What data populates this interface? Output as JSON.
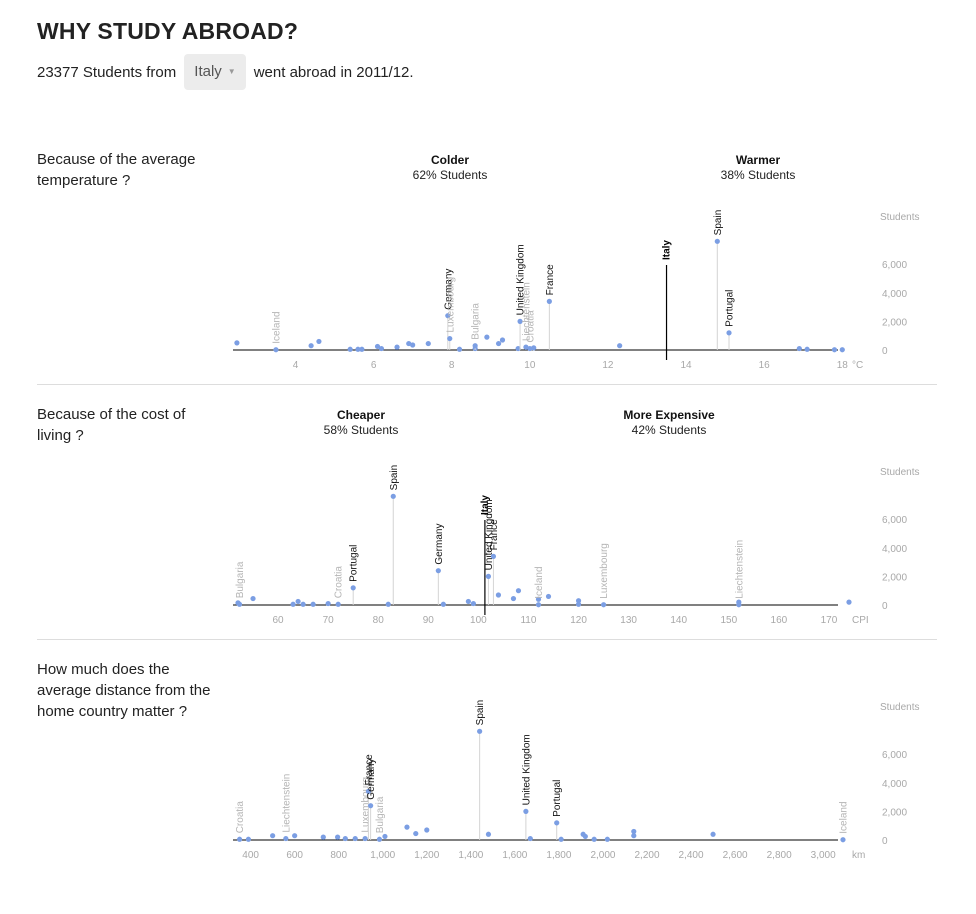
{
  "page": {
    "title": "WHY STUDY ABROAD?"
  },
  "intro": {
    "count": "23377",
    "before": "Students from",
    "country": "Italy",
    "after": "went abroad in 2011/12."
  },
  "colors": {
    "point": "#7b9ee3",
    "stem": "#d4d4d4",
    "axis": "#000000",
    "muted_label": "#b5b5b5",
    "tick": "#a8a8a8",
    "home": "#000000"
  },
  "chart_data": [
    {
      "type": "scatter",
      "question": "Because of the average temperature ?",
      "unit": "°C",
      "y_title": "Students",
      "xlim": [
        2.4,
        18.3
      ],
      "ylim": [
        0,
        6500
      ],
      "x_ticks": [
        4,
        6,
        8,
        10,
        12,
        14,
        16,
        18
      ],
      "x_tick_labels": [
        "4",
        "6",
        "8",
        "10",
        "12",
        "14",
        "16",
        "18"
      ],
      "y_ticks": [
        0,
        2000,
        4000,
        6000
      ],
      "y_tick_labels": [
        "0",
        "2,000",
        "4,000",
        "6,000"
      ],
      "groups": [
        {
          "title": "Colder",
          "subtitle": "62% Students"
        },
        {
          "title": "Warmer",
          "subtitle": "38% Students"
        }
      ],
      "home": {
        "label": "Italy",
        "x": 13.5
      },
      "labeled_points": [
        {
          "label": "Iceland",
          "x": 3.5,
          "y": 20,
          "muted": true
        },
        {
          "label": "Germany",
          "x": 7.9,
          "y": 2400,
          "muted": false
        },
        {
          "label": "Luxembourg",
          "x": 7.95,
          "y": 800,
          "muted": true
        },
        {
          "label": "Bulgaria",
          "x": 8.6,
          "y": 300,
          "muted": true
        },
        {
          "label": "United Kingdom",
          "x": 9.75,
          "y": 2000,
          "muted": false
        },
        {
          "label": "Liechtenstein",
          "x": 9.9,
          "y": 200,
          "muted": true
        },
        {
          "label": "Croatia",
          "x": 10.0,
          "y": 100,
          "muted": true
        },
        {
          "label": "France",
          "x": 10.5,
          "y": 3400,
          "muted": false
        },
        {
          "label": "Spain",
          "x": 14.8,
          "y": 7600,
          "muted": false
        },
        {
          "label": "Portugal",
          "x": 15.1,
          "y": 1200,
          "muted": false
        }
      ],
      "points": [
        {
          "x": 2.5,
          "y": 500
        },
        {
          "x": 4.4,
          "y": 300
        },
        {
          "x": 4.6,
          "y": 600
        },
        {
          "x": 5.4,
          "y": 50
        },
        {
          "x": 5.6,
          "y": 50
        },
        {
          "x": 5.7,
          "y": 50
        },
        {
          "x": 6.1,
          "y": 250
        },
        {
          "x": 6.2,
          "y": 100
        },
        {
          "x": 6.6,
          "y": 200
        },
        {
          "x": 6.9,
          "y": 450
        },
        {
          "x": 7.0,
          "y": 350
        },
        {
          "x": 7.4,
          "y": 450
        },
        {
          "x": 8.2,
          "y": 50
        },
        {
          "x": 8.6,
          "y": 100
        },
        {
          "x": 8.9,
          "y": 900
        },
        {
          "x": 9.2,
          "y": 450
        },
        {
          "x": 9.3,
          "y": 700
        },
        {
          "x": 9.7,
          "y": 100
        },
        {
          "x": 10.1,
          "y": 150
        },
        {
          "x": 12.3,
          "y": 300
        },
        {
          "x": 16.9,
          "y": 100
        },
        {
          "x": 17.1,
          "y": 50
        },
        {
          "x": 17.8,
          "y": 20
        },
        {
          "x": 18.0,
          "y": 20
        }
      ]
    },
    {
      "type": "scatter",
      "question": "Because of the cost of living ?",
      "unit": "CPI",
      "y_title": "Students",
      "xlim": [
        51,
        175
      ],
      "ylim": [
        0,
        6500
      ],
      "x_ticks": [
        60,
        70,
        80,
        90,
        100,
        110,
        120,
        130,
        140,
        150,
        160,
        170
      ],
      "x_tick_labels": [
        "60",
        "70",
        "80",
        "90",
        "100",
        "110",
        "120",
        "130",
        "140",
        "150",
        "160",
        "170"
      ],
      "y_ticks": [
        0,
        2000,
        4000,
        6000
      ],
      "y_tick_labels": [
        "0",
        "2,000",
        "4,000",
        "6,000"
      ],
      "groups": [
        {
          "title": "Cheaper",
          "subtitle": "58% Students"
        },
        {
          "title": "More Expensive",
          "subtitle": "42% Students"
        }
      ],
      "home": {
        "label": "Italy",
        "x": 101.3
      },
      "labeled_points": [
        {
          "label": "Bulgaria",
          "x": 52.3,
          "y": 50,
          "muted": true
        },
        {
          "label": "Croatia",
          "x": 72,
          "y": 50,
          "muted": true
        },
        {
          "label": "Portugal",
          "x": 75,
          "y": 1200,
          "muted": false
        },
        {
          "label": "Spain",
          "x": 83,
          "y": 7600,
          "muted": false
        },
        {
          "label": "Germany",
          "x": 92,
          "y": 2400,
          "muted": false
        },
        {
          "label": "United Kingdom",
          "x": 102,
          "y": 2000,
          "muted": false
        },
        {
          "label": "France",
          "x": 103,
          "y": 3400,
          "muted": false
        },
        {
          "label": "Iceland",
          "x": 112,
          "y": 20,
          "muted": true
        },
        {
          "label": "Luxembourg",
          "x": 125,
          "y": 20,
          "muted": true
        },
        {
          "label": "Liechtenstein",
          "x": 152,
          "y": 20,
          "muted": true
        }
      ],
      "points": [
        {
          "x": 52,
          "y": 150
        },
        {
          "x": 55,
          "y": 450
        },
        {
          "x": 63,
          "y": 50
        },
        {
          "x": 64,
          "y": 250
        },
        {
          "x": 65,
          "y": 50
        },
        {
          "x": 67,
          "y": 50
        },
        {
          "x": 70,
          "y": 100
        },
        {
          "x": 82,
          "y": 50
        },
        {
          "x": 93,
          "y": 50
        },
        {
          "x": 98,
          "y": 250
        },
        {
          "x": 99,
          "y": 100
        },
        {
          "x": 104,
          "y": 700
        },
        {
          "x": 107,
          "y": 450
        },
        {
          "x": 108,
          "y": 1000
        },
        {
          "x": 112,
          "y": 400
        },
        {
          "x": 114,
          "y": 600
        },
        {
          "x": 120,
          "y": 300
        },
        {
          "x": 120,
          "y": 50
        },
        {
          "x": 152,
          "y": 200
        },
        {
          "x": 174,
          "y": 200
        }
      ]
    },
    {
      "type": "scatter",
      "question": "How much does the average distance from the home country matter ?",
      "unit": "km",
      "y_title": "Students",
      "xlim": [
        320,
        3140
      ],
      "ylim": [
        0,
        6500
      ],
      "x_ticks": [
        400,
        600,
        800,
        1000,
        1200,
        1400,
        1600,
        1800,
        2000,
        2200,
        2400,
        2600,
        2800,
        3000
      ],
      "x_tick_labels": [
        "400",
        "600",
        "800",
        "1,000",
        "1,200",
        "1,400",
        "1,600",
        "1,800",
        "2,000",
        "2,200",
        "2,400",
        "2,600",
        "2,800",
        "3,000"
      ],
      "y_ticks": [
        0,
        2000,
        4000,
        6000
      ],
      "y_tick_labels": [
        "0",
        "2,000",
        "4,000",
        "6,000"
      ],
      "groups": [],
      "home": null,
      "labeled_points": [
        {
          "label": "Croatia",
          "x": 350,
          "y": 50,
          "muted": true
        },
        {
          "label": "Liechtenstein",
          "x": 560,
          "y": 100,
          "muted": true
        },
        {
          "label": "Luxembourg",
          "x": 920,
          "y": 100,
          "muted": true
        },
        {
          "label": "France",
          "x": 935,
          "y": 3400,
          "muted": false
        },
        {
          "label": "Germany",
          "x": 945,
          "y": 2400,
          "muted": false
        },
        {
          "label": "Bulgaria",
          "x": 985,
          "y": 50,
          "muted": true
        },
        {
          "label": "Spain",
          "x": 1440,
          "y": 7600,
          "muted": false
        },
        {
          "label": "United Kingdom",
          "x": 1650,
          "y": 2000,
          "muted": false
        },
        {
          "label": "Portugal",
          "x": 1790,
          "y": 1200,
          "muted": false
        },
        {
          "label": "Iceland",
          "x": 3090,
          "y": 20,
          "muted": true
        }
      ],
      "points": [
        {
          "x": 390,
          "y": 50
        },
        {
          "x": 500,
          "y": 300
        },
        {
          "x": 600,
          "y": 300
        },
        {
          "x": 730,
          "y": 200
        },
        {
          "x": 795,
          "y": 200
        },
        {
          "x": 830,
          "y": 100
        },
        {
          "x": 875,
          "y": 100
        },
        {
          "x": 1010,
          "y": 250
        },
        {
          "x": 1110,
          "y": 900
        },
        {
          "x": 1150,
          "y": 450
        },
        {
          "x": 1200,
          "y": 700
        },
        {
          "x": 1480,
          "y": 400
        },
        {
          "x": 1670,
          "y": 100
        },
        {
          "x": 1810,
          "y": 50
        },
        {
          "x": 1910,
          "y": 400
        },
        {
          "x": 1920,
          "y": 250
        },
        {
          "x": 1960,
          "y": 50
        },
        {
          "x": 2020,
          "y": 50
        },
        {
          "x": 2140,
          "y": 300
        },
        {
          "x": 2140,
          "y": 600
        },
        {
          "x": 2500,
          "y": 400
        }
      ]
    }
  ]
}
